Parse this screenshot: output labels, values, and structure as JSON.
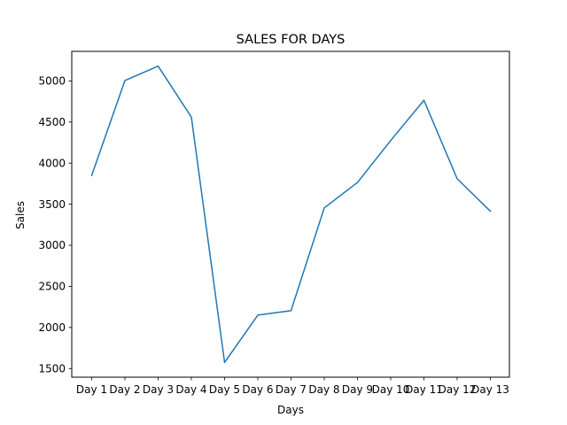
{
  "chart_data": {
    "type": "line",
    "title": "SALES FOR DAYS",
    "xlabel": "Days",
    "ylabel": "Sales",
    "categories": [
      "Day 1",
      "Day 2",
      "Day 3",
      "Day 4",
      "Day 5",
      "Day 6",
      "Day 7",
      "Day 8",
      "Day 9",
      "Day 10",
      "Day 11",
      "Day 12",
      "Day 13"
    ],
    "series": [
      {
        "values": [
          3850,
          5005,
          5180,
          4560,
          1575,
          2150,
          2205,
          3455,
          3765,
          4275,
          4765,
          3810,
          3415
        ]
      }
    ],
    "yticks": [
      1500,
      2000,
      2500,
      3000,
      3500,
      4000,
      4500,
      5000
    ],
    "ylim": [
      1395,
      5360
    ],
    "grid": false,
    "legend": "none",
    "colors": {
      "line": "#1f77b4",
      "axes": "#000000"
    }
  }
}
